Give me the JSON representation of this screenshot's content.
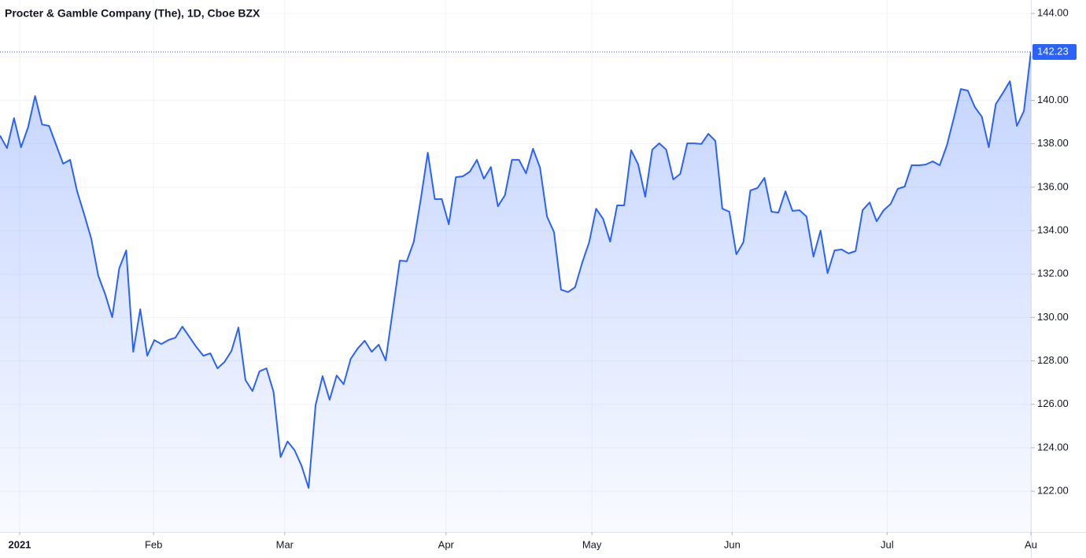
{
  "chart_data": {
    "type": "area",
    "title": "Procter & Gamble Company (The), 1D, Cboe BZX",
    "color": "#2962ff",
    "values": [
      138.38,
      137.8,
      139.18,
      137.84,
      138.75,
      140.2,
      138.89,
      138.82,
      137.95,
      137.08,
      137.26,
      135.81,
      134.76,
      133.64,
      131.93,
      131.07,
      130.01,
      132.26,
      133.09,
      128.42,
      130.38,
      128.24,
      128.96,
      128.78,
      128.96,
      129.07,
      129.58,
      129.11,
      128.64,
      128.24,
      128.35,
      127.66,
      127.95,
      128.46,
      129.54,
      127.12,
      126.61,
      127.52,
      127.66,
      126.57,
      123.57,
      124.29,
      123.89,
      123.17,
      122.15,
      125.96,
      127.3,
      126.21,
      127.33,
      126.93,
      128.09,
      128.57,
      128.93,
      128.42,
      128.75,
      128.02,
      130.3,
      132.62,
      132.59,
      133.49,
      135.45,
      137.59,
      135.45,
      135.45,
      134.29,
      136.46,
      136.5,
      136.72,
      137.26,
      136.39,
      136.93,
      135.12,
      135.63,
      137.26,
      137.26,
      136.64,
      137.77,
      136.9,
      134.65,
      133.93,
      131.28,
      131.17,
      131.39,
      132.51,
      133.46,
      135.01,
      134.54,
      133.49,
      135.16,
      135.16,
      137.7,
      137.04,
      135.56,
      137.73,
      138.02,
      137.73,
      136.36,
      136.61,
      138.02,
      138.02,
      137.99,
      138.46,
      138.13,
      135.01,
      134.87,
      132.91,
      133.46,
      135.85,
      135.96,
      136.43,
      134.87,
      134.83,
      135.81,
      134.91,
      134.94,
      134.65,
      132.8,
      134.0,
      132.04,
      133.09,
      133.13,
      132.95,
      133.06,
      134.94,
      135.3,
      134.43,
      134.94,
      135.23,
      135.92,
      136.03,
      137.01,
      137.01,
      137.04,
      137.19,
      137.01,
      137.91,
      139.18,
      140.52,
      140.45,
      139.69,
      139.25,
      137.84,
      139.83,
      140.34,
      140.88,
      138.82,
      139.51,
      142.23
    ],
    "price_label": "142.23",
    "xlim": [
      0,
      147
    ],
    "xticks": [
      {
        "value": 2.8,
        "label": "2021"
      },
      {
        "value": 21.9,
        "label": "Feb"
      },
      {
        "value": 40.6,
        "label": "Mar"
      },
      {
        "value": 63.6,
        "label": "Apr"
      },
      {
        "value": 84.4,
        "label": "May"
      },
      {
        "value": 104.4,
        "label": "Jun"
      },
      {
        "value": 126.5,
        "label": "Jul"
      },
      {
        "value": 147,
        "label": "Au"
      }
    ],
    "ylim": [
      120.12,
      144.62
    ],
    "yticks": [
      {
        "value": 122,
        "label": "122.00"
      },
      {
        "value": 124,
        "label": "124.00"
      },
      {
        "value": 126,
        "label": "126.00"
      },
      {
        "value": 128,
        "label": "128.00"
      },
      {
        "value": 130,
        "label": "130.00"
      },
      {
        "value": 132,
        "label": "132.00"
      },
      {
        "value": 134,
        "label": "134.00"
      },
      {
        "value": 136,
        "label": "136.00"
      },
      {
        "value": 138,
        "label": "138.00"
      },
      {
        "value": 140,
        "label": "140.00"
      },
      {
        "value": 142,
        "label": "142.00"
      },
      {
        "value": 144,
        "label": "144.00"
      }
    ],
    "grid": true
  }
}
